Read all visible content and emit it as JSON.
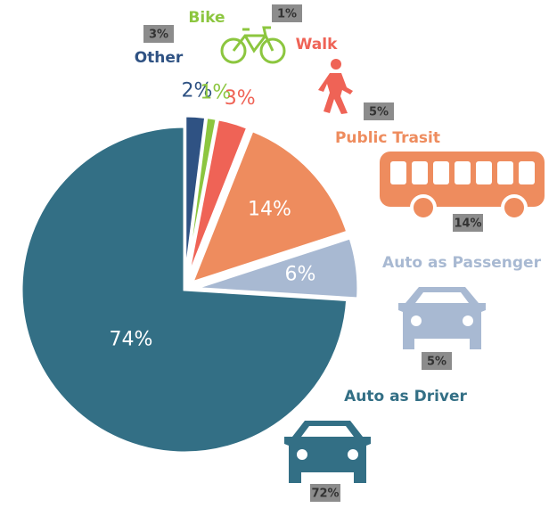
{
  "chart_data": {
    "type": "pie",
    "categories": [
      "Other",
      "Bike",
      "Walk",
      "Public Trasit",
      "Auto as Passenger",
      "Auto as Driver"
    ],
    "values": [
      2,
      1,
      3,
      14,
      6,
      74
    ],
    "value_labels": [
      "2%",
      "1%",
      "3%",
      "14%",
      "6%",
      "74%"
    ],
    "colors": [
      "#2f5283",
      "#8cc63f",
      "#ef6356",
      "#ee8c5e",
      "#a8b9d2",
      "#336f85"
    ],
    "benchmark_values": [
      3,
      1,
      5,
      14,
      5,
      72
    ],
    "benchmark_labels": [
      "3%",
      "1%",
      "5%",
      "14%",
      "5%",
      "72%"
    ]
  }
}
